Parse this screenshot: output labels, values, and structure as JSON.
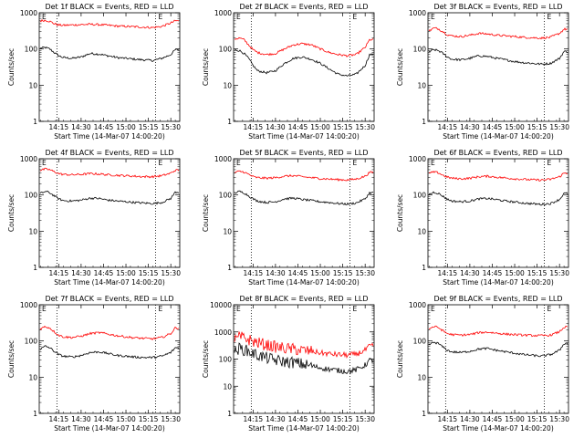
{
  "chart_data": [
    {
      "type": "line",
      "title": "Det 1f BLACK = Events, RED = LLD",
      "ylabel": "Counts/sec",
      "xlabel": "Start Time (14-Mar-07 14:00:20)",
      "yscale": "log",
      "ylim": [
        1,
        1000
      ],
      "yticks": [
        "1",
        "10",
        "100",
        "1000"
      ],
      "xrange": [
        14.033,
        15.6
      ],
      "xticks": [
        "14:15",
        "14:30",
        "14:45",
        "15:00",
        "15:15",
        "15:30"
      ],
      "vlines": [
        14.23,
        15.33
      ],
      "markers": [
        "E",
        "E"
      ],
      "series": [
        {
          "color": "#000000",
          "x": [
            14.05,
            14.1,
            14.15,
            14.2,
            14.25,
            14.3,
            14.4,
            14.5,
            14.6,
            14.7,
            14.8,
            14.9,
            15.0,
            15.1,
            15.2,
            15.3,
            15.4,
            15.5,
            15.55
          ],
          "y": [
            105,
            110,
            100,
            80,
            65,
            58,
            55,
            60,
            75,
            72,
            65,
            58,
            55,
            52,
            50,
            48,
            55,
            70,
            95
          ]
        },
        {
          "color": "#ff0000",
          "x": [
            14.05,
            14.1,
            14.15,
            14.2,
            14.25,
            14.3,
            14.4,
            14.5,
            14.6,
            14.7,
            14.8,
            14.9,
            15.0,
            15.1,
            15.2,
            15.3,
            15.4,
            15.5,
            15.55
          ],
          "y": [
            600,
            620,
            580,
            500,
            460,
            450,
            460,
            470,
            480,
            470,
            450,
            430,
            420,
            410,
            400,
            390,
            420,
            520,
            600
          ]
        }
      ]
    },
    {
      "type": "line",
      "title": "Det 2f BLACK = Events, RED = LLD",
      "ylabel": "Counts/sec",
      "xlabel": "Start Time (14-Mar-07 14:00:20)",
      "yscale": "log",
      "ylim": [
        1,
        1000
      ],
      "yticks": [
        "1",
        "10",
        "100",
        "1000"
      ],
      "xrange": [
        14.033,
        15.6
      ],
      "xticks": [
        "14:15",
        "14:30",
        "14:45",
        "15:00",
        "15:15",
        "15:30"
      ],
      "vlines": [
        14.23,
        15.33
      ],
      "markers": [
        "E",
        "E"
      ],
      "series": [
        {
          "color": "#000000",
          "x": [
            14.05,
            14.1,
            14.15,
            14.2,
            14.25,
            14.3,
            14.4,
            14.5,
            14.6,
            14.7,
            14.8,
            14.9,
            15.0,
            15.1,
            15.2,
            15.3,
            15.4,
            15.5,
            15.55
          ],
          "y": [
            95,
            90,
            75,
            55,
            35,
            25,
            22,
            25,
            40,
            55,
            60,
            52,
            40,
            28,
            20,
            18,
            20,
            35,
            70
          ]
        },
        {
          "color": "#ff0000",
          "x": [
            14.05,
            14.1,
            14.15,
            14.2,
            14.25,
            14.3,
            14.4,
            14.5,
            14.6,
            14.7,
            14.8,
            14.9,
            15.0,
            15.1,
            15.2,
            15.3,
            15.4,
            15.5,
            15.55
          ],
          "y": [
            190,
            200,
            180,
            130,
            95,
            80,
            70,
            75,
            100,
            130,
            140,
            130,
            100,
            80,
            70,
            65,
            70,
            110,
            180
          ]
        }
      ]
    },
    {
      "type": "line",
      "title": "Det 3f BLACK = Events, RED = LLD",
      "ylabel": "Counts/sec",
      "xlabel": "Start Time (14-Mar-07 14:00:20)",
      "yscale": "log",
      "ylim": [
        1,
        1000
      ],
      "yticks": [
        "1",
        "10",
        "100",
        "1000"
      ],
      "xrange": [
        14.033,
        15.6
      ],
      "xticks": [
        "14:15",
        "14:30",
        "14:45",
        "15:00",
        "15:15",
        "15:30"
      ],
      "vlines": [
        14.23,
        15.33
      ],
      "markers": [
        "E",
        "E"
      ],
      "series": [
        {
          "color": "#000000",
          "x": [
            14.05,
            14.1,
            14.15,
            14.2,
            14.25,
            14.3,
            14.4,
            14.5,
            14.6,
            14.7,
            14.8,
            14.9,
            15.0,
            15.1,
            15.2,
            15.3,
            15.4,
            15.5,
            15.55
          ],
          "y": [
            85,
            95,
            90,
            75,
            60,
            52,
            50,
            55,
            65,
            62,
            55,
            50,
            45,
            42,
            40,
            38,
            40,
            55,
            85
          ]
        },
        {
          "color": "#ff0000",
          "x": [
            14.05,
            14.1,
            14.15,
            14.2,
            14.25,
            14.3,
            14.4,
            14.5,
            14.6,
            14.7,
            14.8,
            14.9,
            15.0,
            15.1,
            15.2,
            15.3,
            15.4,
            15.5,
            15.55
          ],
          "y": [
            320,
            380,
            360,
            300,
            250,
            230,
            220,
            240,
            270,
            260,
            240,
            230,
            220,
            210,
            205,
            200,
            210,
            270,
            350
          ]
        }
      ]
    },
    {
      "type": "line",
      "title": "Det 4f BLACK = Events, RED = LLD",
      "ylabel": "Counts/sec",
      "xlabel": "Start Time (14-Mar-07 14:00:20)",
      "yscale": "log",
      "ylim": [
        1,
        1000
      ],
      "yticks": [
        "1",
        "10",
        "100",
        "1000"
      ],
      "xrange": [
        14.033,
        15.6
      ],
      "xticks": [
        "14:15",
        "14:30",
        "14:45",
        "15:00",
        "15:15",
        "15:30"
      ],
      "vlines": [
        14.23,
        15.33
      ],
      "markers": [
        "E",
        "E"
      ],
      "series": [
        {
          "color": "#000000",
          "x": [
            14.05,
            14.1,
            14.15,
            14.2,
            14.25,
            14.3,
            14.4,
            14.5,
            14.6,
            14.7,
            14.8,
            14.9,
            15.0,
            15.1,
            15.2,
            15.3,
            15.4,
            15.5,
            15.55
          ],
          "y": [
            110,
            125,
            115,
            95,
            78,
            70,
            68,
            72,
            82,
            80,
            72,
            68,
            65,
            62,
            60,
            58,
            62,
            80,
            120
          ]
        },
        {
          "color": "#ff0000",
          "x": [
            14.05,
            14.1,
            14.15,
            14.2,
            14.25,
            14.3,
            14.4,
            14.5,
            14.6,
            14.7,
            14.8,
            14.9,
            15.0,
            15.1,
            15.2,
            15.3,
            15.4,
            15.5,
            15.55
          ],
          "y": [
            480,
            520,
            500,
            440,
            390,
            370,
            360,
            370,
            390,
            380,
            360,
            350,
            340,
            330,
            320,
            320,
            340,
            400,
            480
          ]
        }
      ]
    },
    {
      "type": "line",
      "title": "Det 5f BLACK = Events, RED = LLD",
      "ylabel": "Counts/sec",
      "xlabel": "Start Time (14-Mar-07 14:00:20)",
      "yscale": "log",
      "ylim": [
        1,
        1000
      ],
      "yticks": [
        "1",
        "10",
        "100",
        "1000"
      ],
      "xrange": [
        14.033,
        15.6
      ],
      "xticks": [
        "14:15",
        "14:30",
        "14:45",
        "15:00",
        "15:15",
        "15:30"
      ],
      "vlines": [
        14.23,
        15.33
      ],
      "markers": [
        "E",
        "E"
      ],
      "series": [
        {
          "color": "#000000",
          "x": [
            14.05,
            14.1,
            14.15,
            14.2,
            14.25,
            14.3,
            14.4,
            14.5,
            14.6,
            14.7,
            14.8,
            14.9,
            15.0,
            15.1,
            15.2,
            15.3,
            15.4,
            15.5,
            15.55
          ],
          "y": [
            115,
            125,
            115,
            95,
            78,
            68,
            62,
            65,
            78,
            82,
            75,
            70,
            65,
            62,
            58,
            56,
            60,
            78,
            115
          ]
        },
        {
          "color": "#ff0000",
          "x": [
            14.05,
            14.1,
            14.15,
            14.2,
            14.25,
            14.3,
            14.4,
            14.5,
            14.6,
            14.7,
            14.8,
            14.9,
            15.0,
            15.1,
            15.2,
            15.3,
            15.4,
            15.5,
            15.55
          ],
          "y": [
            420,
            450,
            430,
            370,
            320,
            300,
            290,
            300,
            330,
            340,
            320,
            300,
            285,
            275,
            265,
            260,
            275,
            330,
            420
          ]
        }
      ]
    },
    {
      "type": "line",
      "title": "Det 6f BLACK = Events, RED = LLD",
      "ylabel": "Counts/sec",
      "xlabel": "Start Time (14-Mar-07 14:00:20)",
      "yscale": "log",
      "ylim": [
        1,
        1000
      ],
      "yticks": [
        "1",
        "10",
        "100",
        "1000"
      ],
      "xrange": [
        14.033,
        15.6
      ],
      "xticks": [
        "14:15",
        "14:30",
        "14:45",
        "15:00",
        "15:15",
        "15:30"
      ],
      "vlines": [
        14.23,
        15.33
      ],
      "markers": [
        "E",
        "E"
      ],
      "series": [
        {
          "color": "#000000",
          "x": [
            14.05,
            14.1,
            14.15,
            14.2,
            14.25,
            14.3,
            14.4,
            14.5,
            14.6,
            14.7,
            14.8,
            14.9,
            15.0,
            15.1,
            15.2,
            15.3,
            15.4,
            15.5,
            15.55
          ],
          "y": [
            105,
            120,
            110,
            92,
            76,
            68,
            65,
            68,
            78,
            80,
            74,
            68,
            64,
            60,
            57,
            55,
            58,
            75,
            110
          ]
        },
        {
          "color": "#ff0000",
          "x": [
            14.05,
            14.1,
            14.15,
            14.2,
            14.25,
            14.3,
            14.4,
            14.5,
            14.6,
            14.7,
            14.8,
            14.9,
            15.0,
            15.1,
            15.2,
            15.3,
            15.4,
            15.5,
            15.55
          ],
          "y": [
            400,
            430,
            410,
            350,
            310,
            290,
            280,
            290,
            320,
            330,
            310,
            295,
            280,
            270,
            262,
            258,
            270,
            320,
            400
          ]
        }
      ]
    },
    {
      "type": "line",
      "title": "Det 7f BLACK = Events, RED = LLD",
      "ylabel": "Counts/sec",
      "xlabel": "Start Time (14-Mar-07 14:00:20)",
      "yscale": "log",
      "ylim": [
        1,
        1000
      ],
      "yticks": [
        "1",
        "10",
        "100",
        "1000"
      ],
      "xrange": [
        14.033,
        15.6
      ],
      "xticks": [
        "14:15",
        "14:30",
        "14:45",
        "15:00",
        "15:15",
        "15:30"
      ],
      "vlines": [
        14.23,
        15.33
      ],
      "markers": [
        "E",
        "E"
      ],
      "series": [
        {
          "color": "#000000",
          "x": [
            14.05,
            14.1,
            14.15,
            14.2,
            14.25,
            14.3,
            14.4,
            14.5,
            14.6,
            14.7,
            14.8,
            14.9,
            15.0,
            15.1,
            15.2,
            15.3,
            15.4,
            15.5,
            15.55
          ],
          "y": [
            60,
            72,
            65,
            52,
            42,
            38,
            36,
            40,
            48,
            50,
            45,
            40,
            38,
            36,
            35,
            35,
            38,
            48,
            65
          ]
        },
        {
          "color": "#ff0000",
          "x": [
            14.05,
            14.1,
            14.15,
            14.2,
            14.25,
            14.3,
            14.4,
            14.5,
            14.6,
            14.7,
            14.8,
            14.9,
            15.0,
            15.1,
            15.2,
            15.3,
            15.4,
            15.5,
            15.55
          ],
          "y": [
            220,
            250,
            230,
            180,
            145,
            130,
            125,
            135,
            160,
            170,
            155,
            140,
            130,
            122,
            118,
            115,
            125,
            160,
            230
          ]
        }
      ]
    },
    {
      "type": "line",
      "title": "Det 8f BLACK = Events, RED = LLD",
      "ylabel": "Counts/sec",
      "xlabel": "Start Time (14-Mar-07 14:00:20)",
      "yscale": "log",
      "ylim": [
        1,
        10000
      ],
      "yticks": [
        "1",
        "10",
        "100",
        "1000",
        "10000"
      ],
      "xrange": [
        14.033,
        15.6
      ],
      "xticks": [
        "14:15",
        "14:30",
        "14:45",
        "15:00",
        "15:15",
        "15:30"
      ],
      "vlines": [
        14.23,
        15.33
      ],
      "markers": [
        "E",
        "E"
      ],
      "series": [
        {
          "color": "#000000",
          "x": [
            14.05,
            14.1,
            14.15,
            14.2,
            14.25,
            14.3,
            14.4,
            14.5,
            14.6,
            14.7,
            14.8,
            14.9,
            15.0,
            15.1,
            15.2,
            15.3,
            15.4,
            15.5,
            15.55
          ],
          "y": [
            180,
            250,
            220,
            190,
            160,
            140,
            110,
            90,
            80,
            75,
            65,
            55,
            48,
            42,
            38,
            35,
            40,
            60,
            90
          ]
        },
        {
          "color": "#ff0000",
          "x": [
            14.05,
            14.1,
            14.15,
            14.2,
            14.25,
            14.3,
            14.4,
            14.5,
            14.6,
            14.7,
            14.8,
            14.9,
            15.0,
            15.1,
            15.2,
            15.3,
            15.4,
            15.5,
            15.55
          ],
          "y": [
            500,
            650,
            600,
            520,
            450,
            400,
            330,
            280,
            250,
            230,
            210,
            190,
            170,
            155,
            145,
            140,
            150,
            210,
            300
          ]
        }
      ]
    },
    {
      "type": "line",
      "title": "Det 9f BLACK = Events, RED = LLD",
      "ylabel": "Counts/sec",
      "xlabel": "Start Time (14-Mar-07 14:00:20)",
      "yscale": "log",
      "ylim": [
        1,
        1000
      ],
      "yticks": [
        "1",
        "10",
        "100",
        "1000"
      ],
      "xrange": [
        14.033,
        15.6
      ],
      "xticks": [
        "14:15",
        "14:30",
        "14:45",
        "15:00",
        "15:15",
        "15:30"
      ],
      "vlines": [
        14.23,
        15.33
      ],
      "markers": [
        "E",
        "E"
      ],
      "series": [
        {
          "color": "#000000",
          "x": [
            14.05,
            14.1,
            14.15,
            14.2,
            14.25,
            14.3,
            14.4,
            14.5,
            14.6,
            14.7,
            14.8,
            14.9,
            15.0,
            15.1,
            15.2,
            15.3,
            15.4,
            15.5,
            15.55
          ],
          "y": [
            80,
            92,
            85,
            68,
            55,
            50,
            48,
            52,
            60,
            62,
            55,
            50,
            46,
            42,
            40,
            38,
            42,
            55,
            85
          ]
        },
        {
          "color": "#ff0000",
          "x": [
            14.05,
            14.1,
            14.15,
            14.2,
            14.25,
            14.3,
            14.4,
            14.5,
            14.6,
            14.7,
            14.8,
            14.9,
            15.0,
            15.1,
            15.2,
            15.3,
            15.4,
            15.5,
            15.55
          ],
          "y": [
            220,
            250,
            235,
            190,
            160,
            150,
            145,
            150,
            170,
            175,
            165,
            155,
            150,
            145,
            142,
            140,
            145,
            180,
            240
          ]
        }
      ]
    }
  ]
}
